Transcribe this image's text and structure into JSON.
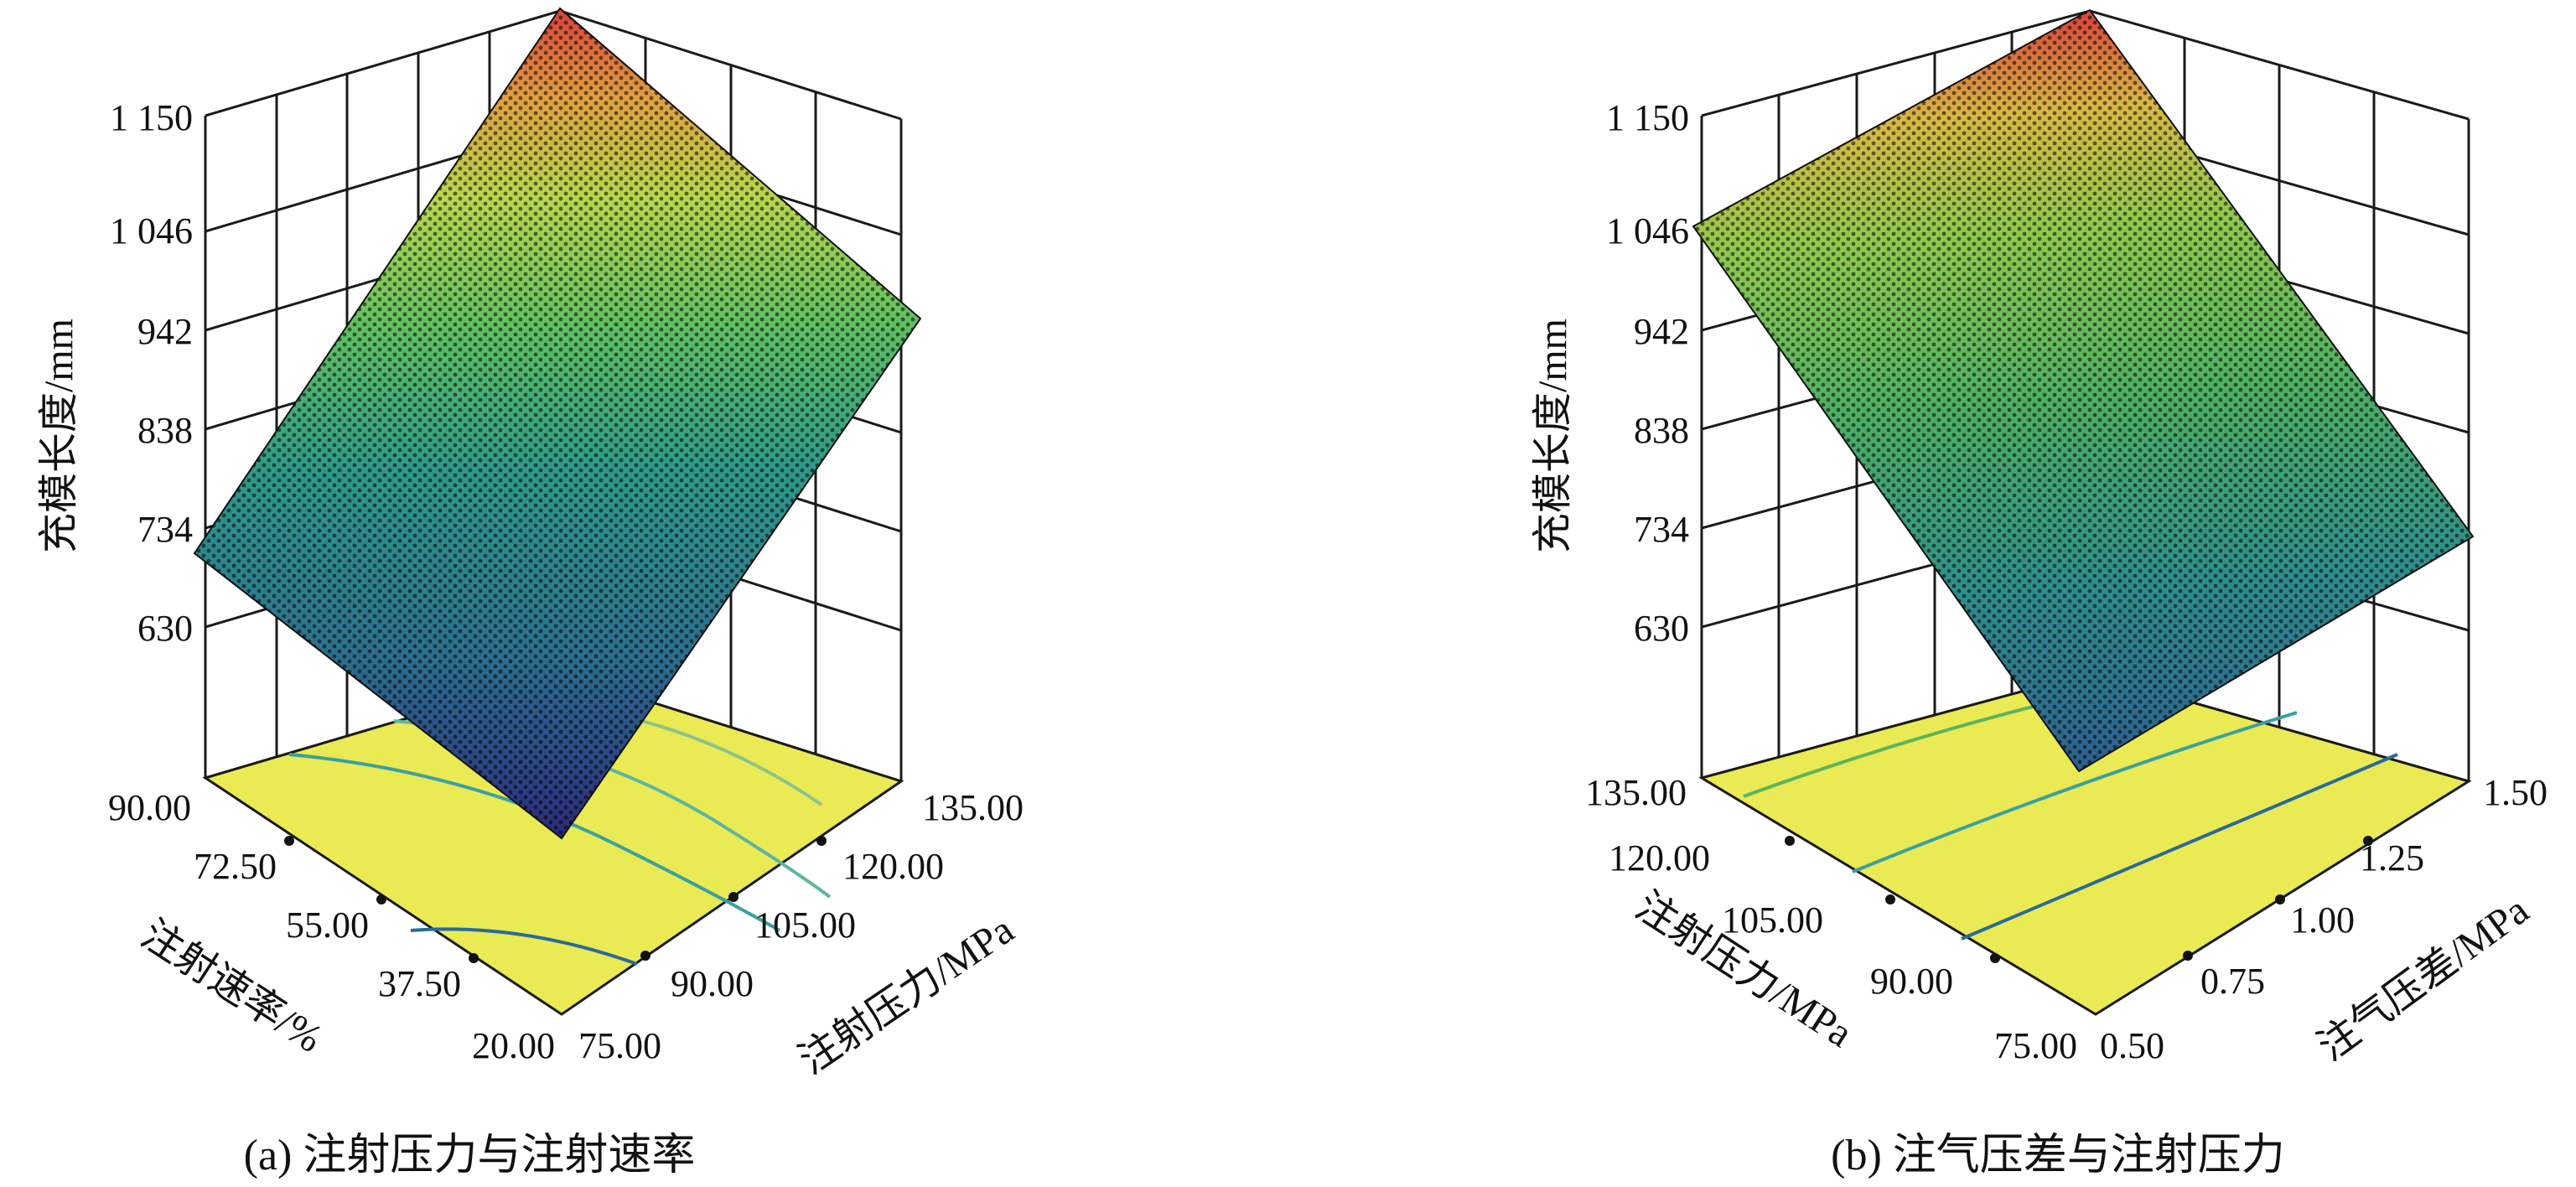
{
  "figure": {
    "background": "#ffffff",
    "surface_colormap": [
      "#2b2a7a",
      "#2c6e8e",
      "#2fae8a",
      "#7fd05a",
      "#e3e04a",
      "#f0a040",
      "#d8493a"
    ],
    "contour_plane_color": "#e9ea54",
    "grid_color": "#1a1a1a"
  },
  "chart_data": [
    {
      "type": "surface",
      "caption": "(a) 注射压力与注射速率",
      "zlabel": "充模长度/mm",
      "xlabel": "注射速率/%",
      "ylabel": "注射压力/MPa",
      "z_ticks": [
        "630",
        "734",
        "838",
        "942",
        "1 046",
        "1 150"
      ],
      "zlim": [
        630,
        1150
      ],
      "x_ticks": [
        "20.00",
        "37.50",
        "55.00",
        "72.50",
        "90.00"
      ],
      "xlim": [
        20,
        90
      ],
      "y_ticks": [
        "75.00",
        "90.00",
        "105.00",
        "120.00",
        "135.00"
      ],
      "ylim": [
        75,
        135
      ],
      "corners": [
        {
          "x": 20,
          "y": 75,
          "z": 660
        },
        {
          "x": 90,
          "y": 75,
          "z": 715
        },
        {
          "x": 20,
          "y": 135,
          "z": 985
        },
        {
          "x": 90,
          "y": 135,
          "z": 1150
        }
      ]
    },
    {
      "type": "surface",
      "caption": "(b) 注气压差与注射压力",
      "zlabel": "充模长度/mm",
      "xlabel": "注射压力/MPa",
      "ylabel": "注气压差/MPa",
      "z_ticks": [
        "630",
        "734",
        "838",
        "942",
        "1 046",
        "1 150"
      ],
      "zlim": [
        630,
        1150
      ],
      "x_ticks": [
        "75.00",
        "90.00",
        "105.00",
        "120.00",
        "135.00"
      ],
      "xlim": [
        75,
        135
      ],
      "y_ticks": [
        "0.50",
        "0.75",
        "1.00",
        "1.25",
        "1.50"
      ],
      "ylim": [
        0.5,
        1.5
      ],
      "corners": [
        {
          "x": 75,
          "y": 0.5,
          "z": 720
        },
        {
          "x": 135,
          "y": 0.5,
          "z": 1010
        },
        {
          "x": 75,
          "y": 1.5,
          "z": 760
        },
        {
          "x": 135,
          "y": 1.5,
          "z": 1150
        }
      ]
    }
  ]
}
